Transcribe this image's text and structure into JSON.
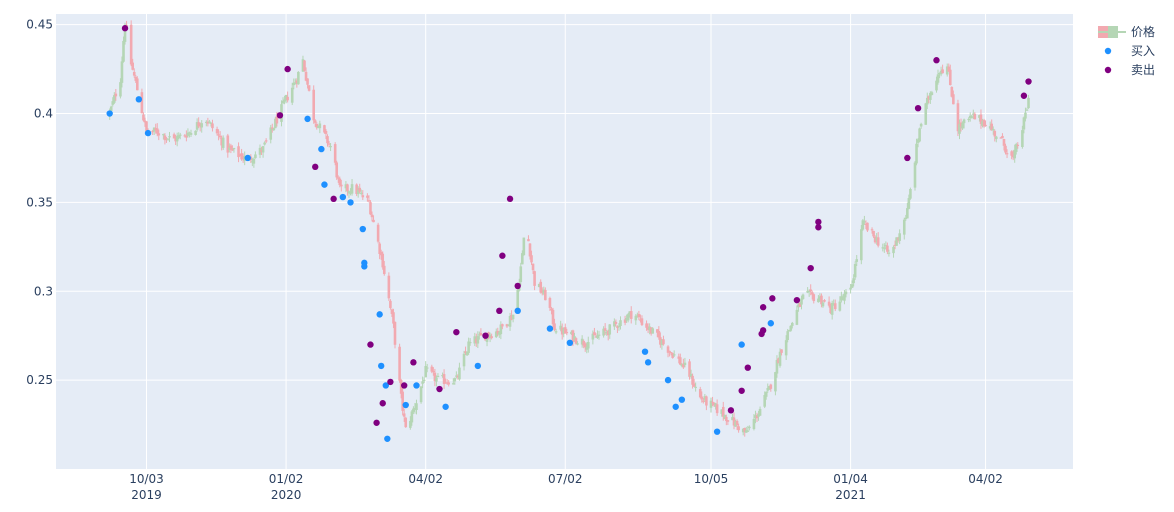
{
  "chart_data": {
    "type": "candlestick",
    "x_ticks": [
      {
        "date": "2019-10-03",
        "label": "10/03",
        "year": "2019"
      },
      {
        "date": "2020-01-02",
        "label": "01/02",
        "year": "2020"
      },
      {
        "date": "2020-04-02",
        "label": "04/02",
        "year": ""
      },
      {
        "date": "2020-07-02",
        "label": "07/02",
        "year": ""
      },
      {
        "date": "2020-10-05",
        "label": "10/05",
        "year": ""
      },
      {
        "date": "2021-01-04",
        "label": "01/04",
        "year": "2021"
      },
      {
        "date": "2021-04-02",
        "label": "04/02",
        "year": ""
      }
    ],
    "xlim": [
      "2019-08-05",
      "2021-05-29"
    ],
    "y_ticks": [
      {
        "value": 0.25,
        "label": "0.25"
      },
      {
        "value": 0.3,
        "label": "0.3"
      },
      {
        "value": 0.35,
        "label": "0.35"
      },
      {
        "value": 0.4,
        "label": "0.4"
      },
      {
        "value": 0.45,
        "label": "0.45"
      }
    ],
    "ylim": [
      0.2,
      0.456
    ],
    "grid": true,
    "legend_position": "top-right",
    "legend": [
      {
        "key": "price",
        "label": "价格"
      },
      {
        "key": "buy",
        "label": "买入"
      },
      {
        "key": "sell",
        "label": "卖出"
      }
    ],
    "colors": {
      "plot_bg": "#e5ecf6",
      "grid": "#ffffff",
      "up": "#b5d6b5",
      "down": "#f2a9b0",
      "buy": "#1e90ff",
      "sell": "#800080",
      "axis_text": "#2a3f5f"
    },
    "price_path": [
      [
        "2019-09-09",
        0.4
      ],
      [
        "2019-09-16",
        0.42
      ],
      [
        "2019-09-19",
        0.452
      ],
      [
        "2019-09-23",
        0.428
      ],
      [
        "2019-09-28",
        0.41
      ],
      [
        "2019-10-03",
        0.389
      ],
      [
        "2019-10-10",
        0.39
      ],
      [
        "2019-10-20",
        0.385
      ],
      [
        "2019-11-01",
        0.39
      ],
      [
        "2019-11-10",
        0.398
      ],
      [
        "2019-11-25",
        0.38
      ],
      [
        "2019-12-08",
        0.374
      ],
      [
        "2019-12-18",
        0.38
      ],
      [
        "2020-01-02",
        0.408
      ],
      [
        "2020-01-09",
        0.42
      ],
      [
        "2020-01-13",
        0.43
      ],
      [
        "2020-01-20",
        0.398
      ],
      [
        "2020-02-01",
        0.38
      ],
      [
        "2020-02-06",
        0.357
      ],
      [
        "2020-02-15",
        0.358
      ],
      [
        "2020-02-25",
        0.35
      ],
      [
        "2020-03-05",
        0.316
      ],
      [
        "2020-03-12",
        0.28
      ],
      [
        "2020-03-17",
        0.24
      ],
      [
        "2020-03-20",
        0.222
      ],
      [
        "2020-03-27",
        0.238
      ],
      [
        "2020-04-02",
        0.255
      ],
      [
        "2020-04-10",
        0.25
      ],
      [
        "2020-04-22",
        0.25
      ],
      [
        "2020-04-30",
        0.27
      ],
      [
        "2020-05-10",
        0.275
      ],
      [
        "2020-05-20",
        0.278
      ],
      [
        "2020-05-30",
        0.288
      ],
      [
        "2020-06-04",
        0.32
      ],
      [
        "2020-06-06",
        0.34
      ],
      [
        "2020-06-12",
        0.305
      ],
      [
        "2020-06-20",
        0.296
      ],
      [
        "2020-06-25",
        0.28
      ],
      [
        "2020-07-05",
        0.275
      ],
      [
        "2020-07-15",
        0.271
      ],
      [
        "2020-07-30",
        0.278
      ],
      [
        "2020-08-15",
        0.288
      ],
      [
        "2020-08-30",
        0.275
      ],
      [
        "2020-09-10",
        0.265
      ],
      [
        "2020-09-20",
        0.255
      ],
      [
        "2020-09-28",
        0.24
      ],
      [
        "2020-10-10",
        0.233
      ],
      [
        "2020-10-20",
        0.226
      ],
      [
        "2020-10-28",
        0.22
      ],
      [
        "2020-11-05",
        0.232
      ],
      [
        "2020-11-12",
        0.245
      ],
      [
        "2020-11-20",
        0.268
      ],
      [
        "2020-11-28",
        0.285
      ],
      [
        "2020-12-05",
        0.298
      ],
      [
        "2020-12-15",
        0.296
      ],
      [
        "2020-12-22",
        0.29
      ],
      [
        "2021-01-04",
        0.3
      ],
      [
        "2021-01-12",
        0.338
      ],
      [
        "2021-01-20",
        0.33
      ],
      [
        "2021-01-30",
        0.32
      ],
      [
        "2021-02-10",
        0.345
      ],
      [
        "2021-02-18",
        0.392
      ],
      [
        "2021-02-25",
        0.412
      ],
      [
        "2021-03-03",
        0.425
      ],
      [
        "2021-03-08",
        0.426
      ],
      [
        "2021-03-15",
        0.392
      ],
      [
        "2021-03-25",
        0.398
      ],
      [
        "2021-04-02",
        0.395
      ],
      [
        "2021-04-12",
        0.385
      ],
      [
        "2021-04-20",
        0.374
      ],
      [
        "2021-04-27",
        0.395
      ],
      [
        "2021-05-01",
        0.412
      ]
    ],
    "buy_points": [
      [
        "2019-09-09",
        0.4
      ],
      [
        "2019-09-28",
        0.408
      ],
      [
        "2019-10-04",
        0.389
      ],
      [
        "2019-12-08",
        0.375
      ],
      [
        "2020-01-16",
        0.397
      ],
      [
        "2020-01-25",
        0.38
      ],
      [
        "2020-01-27",
        0.36
      ],
      [
        "2020-02-08",
        0.353
      ],
      [
        "2020-02-13",
        0.35
      ],
      [
        "2020-02-21",
        0.335
      ],
      [
        "2020-02-22",
        0.316
      ],
      [
        "2020-02-22",
        0.314
      ],
      [
        "2020-03-03",
        0.287
      ],
      [
        "2020-03-04",
        0.258
      ],
      [
        "2020-03-07",
        0.247
      ],
      [
        "2020-03-08",
        0.217
      ],
      [
        "2020-03-20",
        0.236
      ],
      [
        "2020-03-27",
        0.247
      ],
      [
        "2020-04-15",
        0.235
      ],
      [
        "2020-05-06",
        0.258
      ],
      [
        "2020-06-01",
        0.289
      ],
      [
        "2020-06-22",
        0.279
      ],
      [
        "2020-07-05",
        0.271
      ],
      [
        "2020-08-23",
        0.266
      ],
      [
        "2020-08-25",
        0.26
      ],
      [
        "2020-09-07",
        0.25
      ],
      [
        "2020-09-12",
        0.235
      ],
      [
        "2020-09-16",
        0.239
      ],
      [
        "2020-10-09",
        0.221
      ],
      [
        "2020-10-25",
        0.27
      ],
      [
        "2020-11-13",
        0.282
      ]
    ],
    "sell_points": [
      [
        "2019-09-19",
        0.448
      ],
      [
        "2019-12-29",
        0.399
      ],
      [
        "2020-01-03",
        0.425
      ],
      [
        "2020-01-21",
        0.37
      ],
      [
        "2020-02-02",
        0.352
      ],
      [
        "2020-02-26",
        0.27
      ],
      [
        "2020-03-01",
        0.226
      ],
      [
        "2020-03-05",
        0.237
      ],
      [
        "2020-03-10",
        0.249
      ],
      [
        "2020-03-19",
        0.247
      ],
      [
        "2020-03-25",
        0.26
      ],
      [
        "2020-04-11",
        0.245
      ],
      [
        "2020-04-22",
        0.277
      ],
      [
        "2020-05-11",
        0.275
      ],
      [
        "2020-05-20",
        0.289
      ],
      [
        "2020-05-22",
        0.32
      ],
      [
        "2020-05-27",
        0.352
      ],
      [
        "2020-06-01",
        0.303
      ],
      [
        "2020-10-18",
        0.233
      ],
      [
        "2020-10-25",
        0.244
      ],
      [
        "2020-10-29",
        0.257
      ],
      [
        "2020-11-07",
        0.276
      ],
      [
        "2020-11-08",
        0.278
      ],
      [
        "2020-11-08",
        0.291
      ],
      [
        "2020-11-14",
        0.296
      ],
      [
        "2020-11-30",
        0.295
      ],
      [
        "2020-12-09",
        0.313
      ],
      [
        "2020-12-14",
        0.339
      ],
      [
        "2020-12-14",
        0.336
      ],
      [
        "2021-02-10",
        0.375
      ],
      [
        "2021-02-17",
        0.403
      ],
      [
        "2021-03-01",
        0.43
      ],
      [
        "2021-04-27",
        0.41
      ],
      [
        "2021-04-30",
        0.418
      ]
    ]
  }
}
